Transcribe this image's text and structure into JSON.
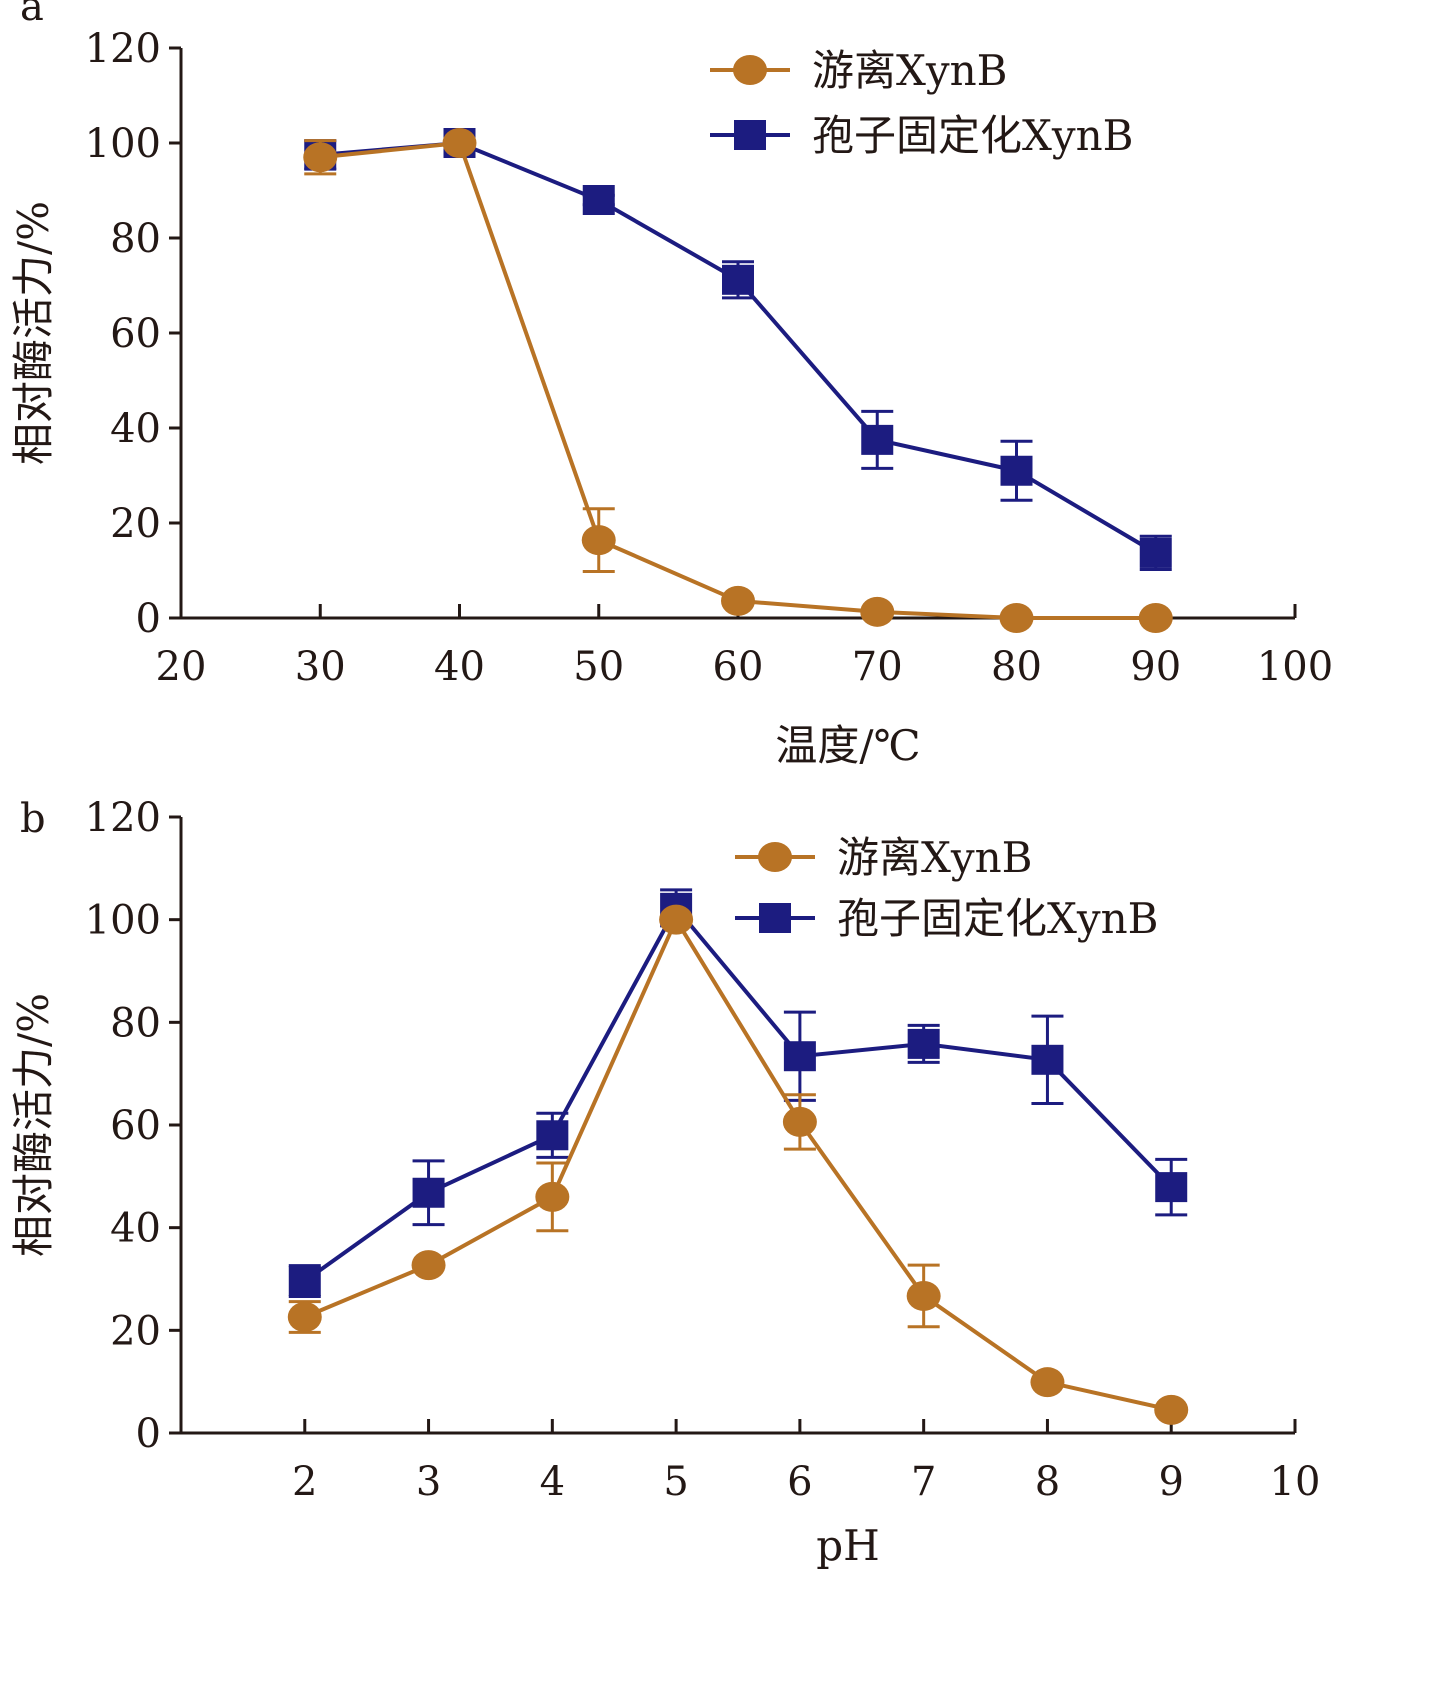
{
  "colors": {
    "free": "#B87325",
    "immobilized": "#1C1C80",
    "axis": "#231815"
  },
  "chart_data": [
    {
      "panel": "a",
      "type": "line",
      "xlabel": "温度/℃",
      "ylabel": "相对酶活力/%",
      "xlim": [
        20,
        100
      ],
      "ylim": [
        0,
        120
      ],
      "xticks": [
        20,
        30,
        40,
        50,
        60,
        70,
        80,
        90,
        100
      ],
      "yticks": [
        0,
        20,
        40,
        60,
        80,
        100,
        120
      ],
      "grid": false,
      "legend_placement": "top-right",
      "x": [
        30,
        40,
        50,
        60,
        70,
        80,
        90
      ],
      "series": [
        {
          "name": "孢子固定化XynB",
          "marker": "square",
          "color": "#1C1C80",
          "values": [
            97.5,
            100,
            88,
            71.2,
            37.5,
            31,
            13.7
          ],
          "errors": [
            3,
            1,
            1,
            3.8,
            6,
            6.2,
            3.5
          ]
        },
        {
          "name": "游离XynB",
          "marker": "circle",
          "color": "#B87325",
          "values": [
            97,
            100,
            16.4,
            3.6,
            1.3,
            0,
            0
          ],
          "errors": [
            3.5,
            0,
            6.6,
            0,
            0,
            0,
            0
          ]
        }
      ]
    },
    {
      "panel": "b",
      "type": "line",
      "xlabel": "pH",
      "ylabel": "相对酶活力/%",
      "xlim": [
        1,
        10
      ],
      "ylim": [
        0,
        120
      ],
      "xticks": [
        2,
        3,
        4,
        5,
        6,
        7,
        8,
        9,
        10
      ],
      "yticks": [
        0,
        20,
        40,
        60,
        80,
        100,
        120
      ],
      "grid": false,
      "legend_placement": "top-right",
      "x": [
        2,
        3,
        4,
        5,
        6,
        7,
        8,
        9
      ],
      "series": [
        {
          "name": "孢子固定化XynB",
          "marker": "square",
          "color": "#1C1C80",
          "values": [
            29.6,
            46.8,
            58,
            102.3,
            73.4,
            75.8,
            72.7,
            47.9
          ],
          "errors": [
            3,
            6.2,
            4.3,
            3.5,
            8.6,
            3.6,
            8.5,
            5.4
          ]
        },
        {
          "name": "游离XynB",
          "marker": "circle",
          "color": "#B87325",
          "values": [
            22.6,
            32.7,
            46,
            100,
            60.6,
            26.7,
            9.9,
            4.5
          ],
          "errors": [
            3,
            0,
            6.6,
            0,
            5.3,
            6,
            0,
            0
          ]
        }
      ]
    }
  ]
}
